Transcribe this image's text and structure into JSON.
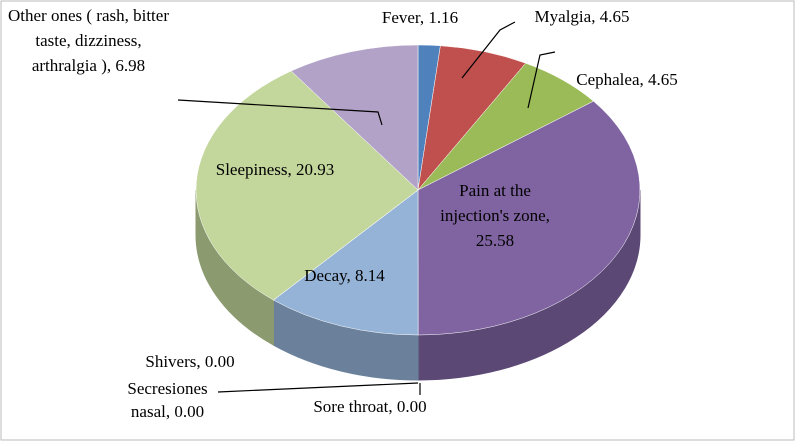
{
  "chart_data": {
    "type": "pie3d",
    "values": [
      1.16,
      4.65,
      4.65,
      25.58,
      8.14,
      0,
      0,
      0,
      20.93,
      6.98
    ],
    "value_labels": [
      "Fever, 1.16",
      "Myalgia,  4.65",
      "Cephalea, 4.65",
      "Pain at the injection's zone, 25.58",
      "Decay, 8.14",
      "Sore throat, 0.00",
      "Secresiones nasal, 0.00",
      "Shivers, 0.00",
      "Sleepiness, 20.93",
      "Other ones ( rash, bitter taste, dizziness, arthralgia ), 6.98"
    ],
    "colors": [
      "#4f81bd",
      "#c0504d",
      "#9bbb59",
      "#8064a2",
      "#95b3d7",
      "#4bacc6",
      "#f79646",
      "#2c4d75",
      "#c3d69b",
      "#b2a2c7"
    ]
  }
}
